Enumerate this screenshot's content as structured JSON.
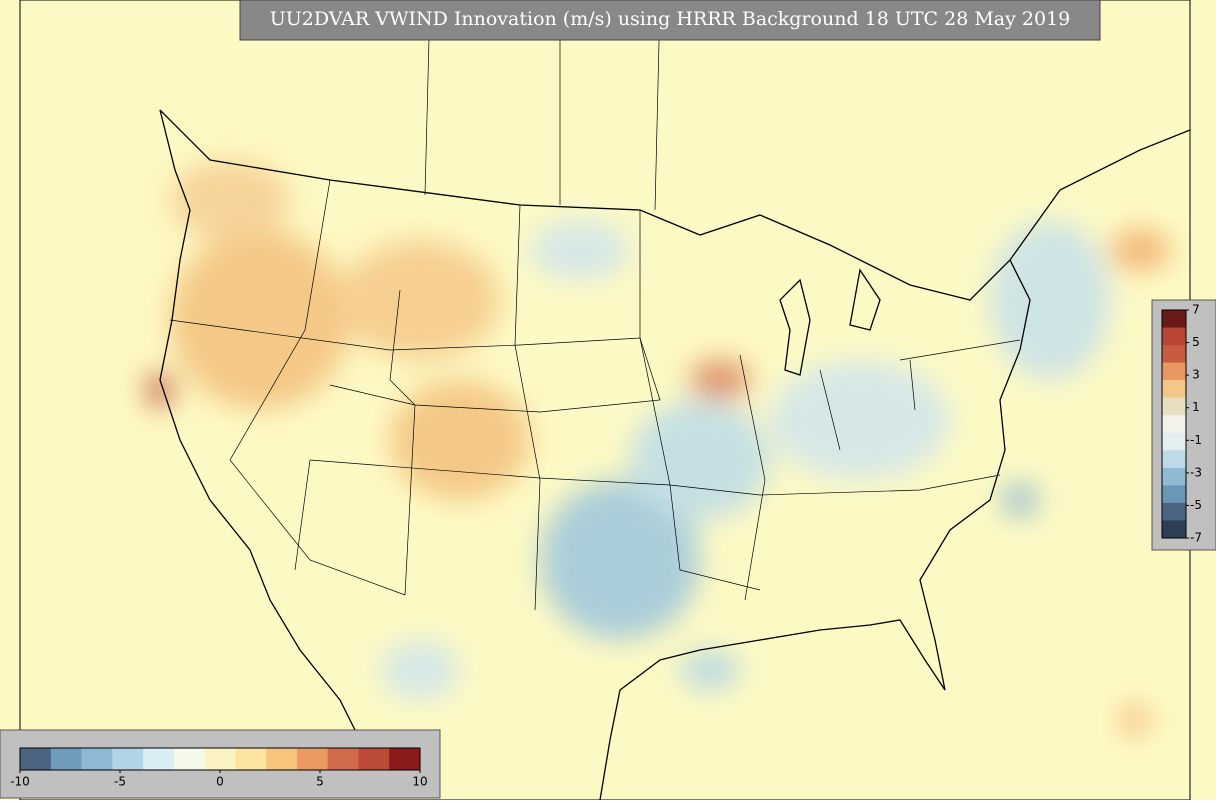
{
  "title": "UU2DVAR VWIND Innovation (m/s) using HRRR Background 18 UTC 28 May 2019",
  "colorbar_bottom": {
    "ticks": [
      -10,
      -5,
      0,
      5,
      10
    ],
    "colors": [
      "#4a6482",
      "#6f9bbd",
      "#8db9d4",
      "#b0d5e6",
      "#d8eef2",
      "#f4f9ea",
      "#fcf3c2",
      "#fde3a0",
      "#f8c47c",
      "#eb9a62",
      "#d06a4a",
      "#bb4a38",
      "#8b1a1a"
    ]
  },
  "colorbar_right": {
    "ticks": [
      7,
      5,
      3,
      1,
      -1,
      -3,
      -5,
      -7
    ],
    "colors": [
      "#6b1a1a",
      "#b84536",
      "#c85c42",
      "#e89860",
      "#f3c78a",
      "#e8dfc0",
      "#f2f2ea",
      "#e3eef0",
      "#bddbe6",
      "#8ebad2",
      "#6a96b8",
      "#4a6482",
      "#2d3e55"
    ]
  }
}
